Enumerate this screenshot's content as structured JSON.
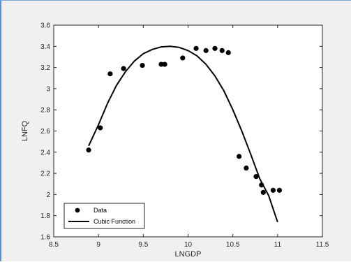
{
  "chart_data": {
    "type": "scatter",
    "xlabel": "LNGDP",
    "ylabel": "LNFQ",
    "xlim": [
      8.5,
      11.5
    ],
    "ylim": [
      1.6,
      3.6
    ],
    "xticks": [
      "8.5",
      "9",
      "9.5",
      "10",
      "10.5",
      "11",
      "11.5"
    ],
    "yticks": [
      "1.6",
      "1.8",
      "2",
      "2.2",
      "2.4",
      "2.6",
      "2.8",
      "3",
      "3.2",
      "3.4",
      "3.6"
    ],
    "grid": false,
    "legend_position": "bottom-left",
    "series": [
      {
        "name": "Data",
        "type": "scatter",
        "color": "#000000",
        "points": [
          [
            8.89,
            2.42
          ],
          [
            9.02,
            2.63
          ],
          [
            9.13,
            3.14
          ],
          [
            9.28,
            3.19
          ],
          [
            9.49,
            3.22
          ],
          [
            9.7,
            3.23
          ],
          [
            9.74,
            3.23
          ],
          [
            9.94,
            3.29
          ],
          [
            10.09,
            3.38
          ],
          [
            10.2,
            3.36
          ],
          [
            10.3,
            3.38
          ],
          [
            10.38,
            3.36
          ],
          [
            10.45,
            3.34
          ],
          [
            10.57,
            2.36
          ],
          [
            10.65,
            2.25
          ],
          [
            10.76,
            2.17
          ],
          [
            10.82,
            2.09
          ],
          [
            10.84,
            2.02
          ],
          [
            10.95,
            2.04
          ],
          [
            11.02,
            2.04
          ]
        ]
      },
      {
        "name": "Cubic Function",
        "type": "line",
        "color": "#000000",
        "points": [
          [
            8.89,
            2.46
          ],
          [
            9.0,
            2.66
          ],
          [
            9.1,
            2.86
          ],
          [
            9.2,
            3.03
          ],
          [
            9.3,
            3.16
          ],
          [
            9.4,
            3.26
          ],
          [
            9.5,
            3.33
          ],
          [
            9.6,
            3.37
          ],
          [
            9.7,
            3.395
          ],
          [
            9.8,
            3.4
          ],
          [
            9.9,
            3.39
          ],
          [
            10.0,
            3.36
          ],
          [
            10.1,
            3.31
          ],
          [
            10.2,
            3.23
          ],
          [
            10.3,
            3.12
          ],
          [
            10.4,
            2.98
          ],
          [
            10.5,
            2.8
          ],
          [
            10.6,
            2.6
          ],
          [
            10.7,
            2.38
          ],
          [
            10.8,
            2.15
          ],
          [
            10.9,
            1.99
          ],
          [
            11.0,
            1.74
          ]
        ]
      }
    ]
  }
}
